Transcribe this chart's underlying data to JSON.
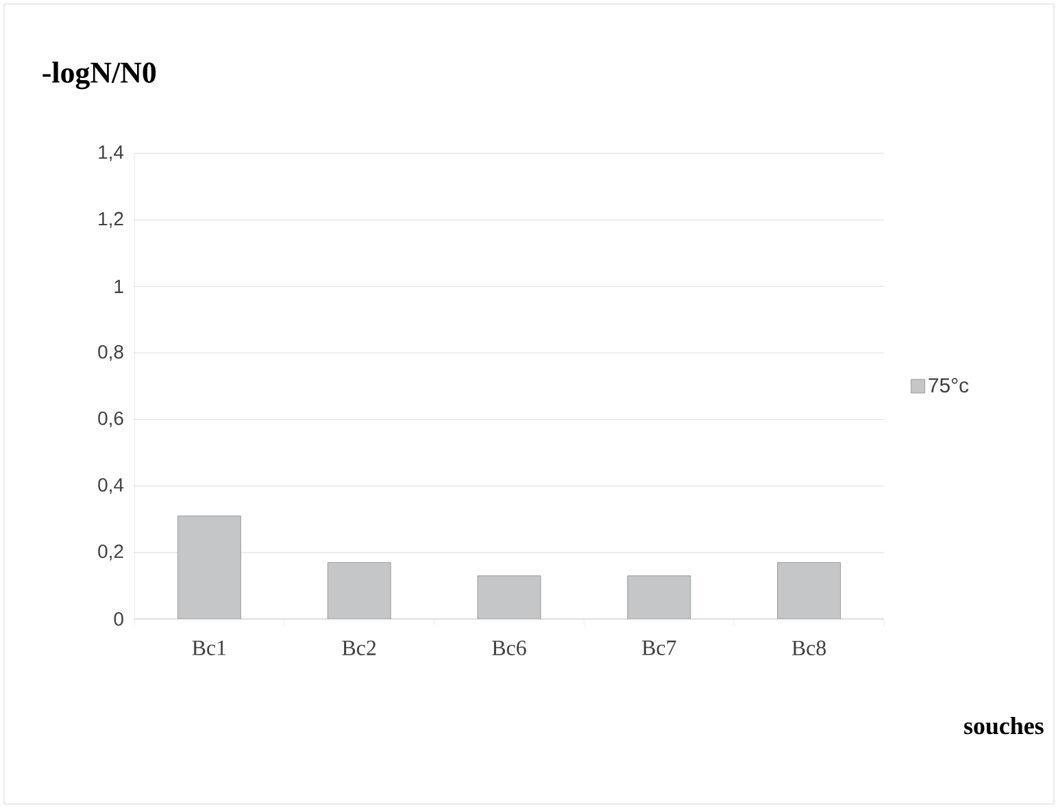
{
  "chart_data": {
    "type": "bar",
    "title": "-logN/N0",
    "xlabel": "souches",
    "categories": [
      "Bc1",
      "Bc2",
      "Bc6",
      "Bc7",
      "Bc8"
    ],
    "series": [
      {
        "name": "75°c",
        "color": "#c4c6c8",
        "values": [
          0.31,
          0.17,
          0.13,
          0.13,
          0.17
        ]
      }
    ],
    "ylim": [
      0,
      1.4
    ],
    "yticks": [
      0,
      {
        "value": 0.2,
        "label": "0,2"
      },
      {
        "value": 0.4,
        "label": "0,4"
      },
      {
        "value": 0.6,
        "label": "0,6"
      },
      {
        "value": 0.8,
        "label": "0,8"
      },
      1,
      {
        "value": 1.2,
        "label": "1,2"
      },
      {
        "value": 1.4,
        "label": "1,4"
      }
    ],
    "grid": "y",
    "legend": "right"
  }
}
